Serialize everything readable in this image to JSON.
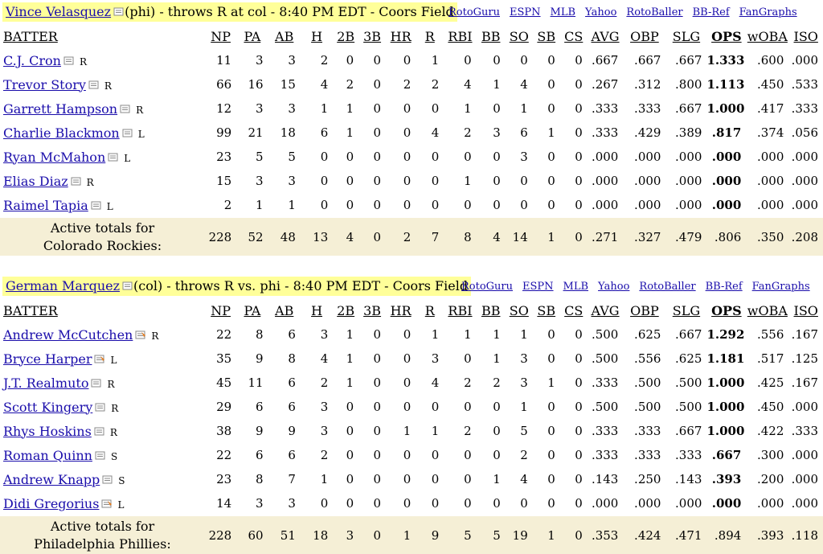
{
  "headers": [
    "BATTER",
    "NP",
    "PA",
    "AB",
    "H",
    "2B",
    "3B",
    "HR",
    "R",
    "RBI",
    "BB",
    "SO",
    "SB",
    "CS",
    "AVG",
    "OBP",
    "SLG",
    "OPS",
    "wOBA",
    "ISO"
  ],
  "links": [
    "RotoGuru",
    "ESPN",
    "MLB",
    "Yahoo",
    "RotoBaller",
    "BB-Ref",
    "FanGraphs"
  ],
  "games": [
    {
      "pitcher": "Vince Velasquez",
      "info": "(phi) - throws R at col - 8:40 PM EDT - Coors Field",
      "batters": [
        {
          "name": "C.J. Cron",
          "hand": "R",
          "note": "plain",
          "stats": [
            "11",
            "3",
            "3",
            "2",
            "0",
            "0",
            "0",
            "1",
            "0",
            "0",
            "0",
            "0",
            "0",
            ".667",
            ".667",
            ".667",
            "1.333",
            ".600",
            ".000"
          ]
        },
        {
          "name": "Trevor Story",
          "hand": "R",
          "note": "plain",
          "stats": [
            "66",
            "16",
            "15",
            "4",
            "2",
            "0",
            "2",
            "2",
            "4",
            "1",
            "4",
            "0",
            "0",
            ".267",
            ".312",
            ".800",
            "1.113",
            ".450",
            ".533"
          ]
        },
        {
          "name": "Garrett Hampson",
          "hand": "R",
          "note": "plain",
          "stats": [
            "12",
            "3",
            "3",
            "1",
            "1",
            "0",
            "0",
            "0",
            "1",
            "0",
            "1",
            "0",
            "0",
            ".333",
            ".333",
            ".667",
            "1.000",
            ".417",
            ".333"
          ]
        },
        {
          "name": "Charlie Blackmon",
          "hand": "L",
          "note": "plain",
          "stats": [
            "99",
            "21",
            "18",
            "6",
            "1",
            "0",
            "0",
            "4",
            "2",
            "3",
            "6",
            "1",
            "0",
            ".333",
            ".429",
            ".389",
            ".817",
            ".374",
            ".056"
          ]
        },
        {
          "name": "Ryan McMahon",
          "hand": "L",
          "note": "plain",
          "stats": [
            "23",
            "5",
            "5",
            "0",
            "0",
            "0",
            "0",
            "0",
            "0",
            "0",
            "3",
            "0",
            "0",
            ".000",
            ".000",
            ".000",
            ".000",
            ".000",
            ".000"
          ]
        },
        {
          "name": "Elias Diaz",
          "hand": "R",
          "note": "plain",
          "stats": [
            "15",
            "3",
            "3",
            "0",
            "0",
            "0",
            "0",
            "0",
            "1",
            "0",
            "0",
            "0",
            "0",
            ".000",
            ".000",
            ".000",
            ".000",
            ".000",
            ".000"
          ]
        },
        {
          "name": "Raimel Tapia",
          "hand": "L",
          "note": "plain",
          "stats": [
            "2",
            "1",
            "1",
            "0",
            "0",
            "0",
            "0",
            "0",
            "0",
            "0",
            "0",
            "0",
            "0",
            ".000",
            ".000",
            ".000",
            ".000",
            ".000",
            ".000"
          ]
        }
      ],
      "totals_label": [
        "Active totals for",
        "Colorado Rockies:"
      ],
      "totals": [
        "228",
        "52",
        "48",
        "13",
        "4",
        "0",
        "2",
        "7",
        "8",
        "4",
        "14",
        "1",
        "0",
        ".271",
        ".327",
        ".479",
        ".806",
        ".350",
        ".208"
      ]
    },
    {
      "pitcher": "German Marquez",
      "info": "(col) - throws R vs. phi - 8:40 PM EDT - Coors Field",
      "batters": [
        {
          "name": "Andrew McCutchen",
          "hand": "R",
          "note": "news",
          "stats": [
            "22",
            "8",
            "6",
            "3",
            "1",
            "0",
            "0",
            "1",
            "1",
            "1",
            "1",
            "0",
            "0",
            ".500",
            ".625",
            ".667",
            "1.292",
            ".556",
            ".167"
          ]
        },
        {
          "name": "Bryce Harper",
          "hand": "L",
          "note": "news",
          "stats": [
            "35",
            "9",
            "8",
            "4",
            "1",
            "0",
            "0",
            "3",
            "0",
            "1",
            "3",
            "0",
            "0",
            ".500",
            ".556",
            ".625",
            "1.181",
            ".517",
            ".125"
          ]
        },
        {
          "name": "J.T. Realmuto",
          "hand": "R",
          "note": "plain",
          "stats": [
            "45",
            "11",
            "6",
            "2",
            "1",
            "0",
            "0",
            "4",
            "2",
            "2",
            "3",
            "1",
            "0",
            ".333",
            ".500",
            ".500",
            "1.000",
            ".425",
            ".167"
          ]
        },
        {
          "name": "Scott Kingery",
          "hand": "R",
          "note": "plain",
          "stats": [
            "29",
            "6",
            "6",
            "3",
            "0",
            "0",
            "0",
            "0",
            "0",
            "0",
            "1",
            "0",
            "0",
            ".500",
            ".500",
            ".500",
            "1.000",
            ".450",
            ".000"
          ]
        },
        {
          "name": "Rhys Hoskins",
          "hand": "R",
          "note": "plain",
          "stats": [
            "38",
            "9",
            "9",
            "3",
            "0",
            "0",
            "1",
            "1",
            "2",
            "0",
            "5",
            "0",
            "0",
            ".333",
            ".333",
            ".667",
            "1.000",
            ".422",
            ".333"
          ]
        },
        {
          "name": "Roman Quinn",
          "hand": "S",
          "note": "plain",
          "stats": [
            "22",
            "6",
            "6",
            "2",
            "0",
            "0",
            "0",
            "0",
            "0",
            "0",
            "2",
            "0",
            "0",
            ".333",
            ".333",
            ".333",
            ".667",
            ".300",
            ".000"
          ]
        },
        {
          "name": "Andrew Knapp",
          "hand": "S",
          "note": "plain",
          "stats": [
            "23",
            "8",
            "7",
            "1",
            "0",
            "0",
            "0",
            "0",
            "0",
            "1",
            "4",
            "0",
            "0",
            ".143",
            ".250",
            ".143",
            ".393",
            ".200",
            ".000"
          ]
        },
        {
          "name": "Didi Gregorius",
          "hand": "L",
          "note": "news",
          "stats": [
            "14",
            "3",
            "3",
            "0",
            "0",
            "0",
            "0",
            "0",
            "0",
            "0",
            "0",
            "0",
            "0",
            ".000",
            ".000",
            ".000",
            ".000",
            ".000",
            ".000"
          ]
        }
      ],
      "totals_label": [
        "Active totals for",
        "Philadelphia Phillies:"
      ],
      "totals": [
        "228",
        "60",
        "51",
        "18",
        "3",
        "0",
        "1",
        "9",
        "5",
        "5",
        "19",
        "1",
        "0",
        ".353",
        ".424",
        ".471",
        ".894",
        ".393",
        ".118"
      ]
    }
  ]
}
